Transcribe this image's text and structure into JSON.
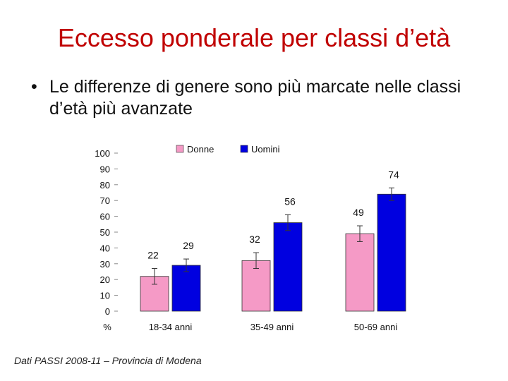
{
  "slide": {
    "title": "Eccesso ponderale per classi d’età",
    "bullet": "Le differenze di genere sono più marcate nelle classi d’età più avanzate",
    "bullet_marker": "•",
    "footer": "Dati PASSI 2008-11 – Provincia di Modena"
  },
  "chart_data": {
    "type": "bar",
    "categories": [
      "18-34 anni",
      "35-49 anni",
      "50-69 anni"
    ],
    "series": [
      {
        "name": "Donne",
        "color": "#f59ac6",
        "values": [
          22,
          32,
          49
        ],
        "error_low": [
          17,
          27,
          44
        ],
        "error_high": [
          27,
          37,
          54
        ]
      },
      {
        "name": "Uomini",
        "color": "#0000e0",
        "values": [
          29,
          56,
          74
        ],
        "error_low": [
          25,
          51,
          70
        ],
        "error_high": [
          33,
          61,
          78
        ]
      }
    ],
    "ylabel": "%",
    "ylim": [
      0,
      100
    ],
    "yticks": [
      0,
      10,
      20,
      30,
      40,
      50,
      60,
      70,
      80,
      90,
      100
    ],
    "legend": "top-left",
    "grid": false
  }
}
